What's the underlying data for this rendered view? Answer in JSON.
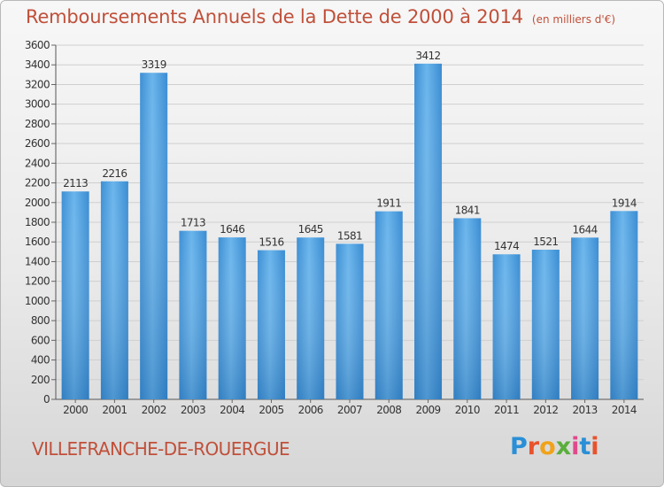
{
  "title": "Remboursements Annuels de la Dette de 2000 à 2014",
  "subtitle": "(en milliers d'€)",
  "city": "VILLEFRANCHE-DE-ROUERGUE",
  "logo": {
    "text": "Proxiti",
    "colors": [
      "#2a8fd6",
      "#e8522c",
      "#f0a31a",
      "#5aae3c",
      "#e04a8c",
      "#2a8fd6",
      "#e8522c"
    ]
  },
  "colors": {
    "bar": "#4a9ee0",
    "bar_light": "#6db6ee",
    "bar_dark": "#2f7fc3",
    "title": "#c0503a",
    "axis": "#666666"
  },
  "chart_data": {
    "type": "bar",
    "title": "Remboursements Annuels de la Dette de 2000 à 2014",
    "categories": [
      "2000",
      "2001",
      "2002",
      "2003",
      "2004",
      "2005",
      "2006",
      "2007",
      "2008",
      "2009",
      "2010",
      "2011",
      "2012",
      "2013",
      "2014"
    ],
    "values": [
      2113,
      2216,
      3319,
      1713,
      1646,
      1516,
      1645,
      1581,
      1911,
      3412,
      1841,
      1474,
      1521,
      1644,
      1914
    ],
    "ylim": [
      0,
      3600
    ],
    "yticks": [
      0,
      200,
      400,
      600,
      800,
      1000,
      1200,
      1400,
      1600,
      1800,
      2000,
      2200,
      2400,
      2600,
      2800,
      3000,
      3200,
      3400,
      3600
    ],
    "grid": true,
    "data_labels": true
  }
}
